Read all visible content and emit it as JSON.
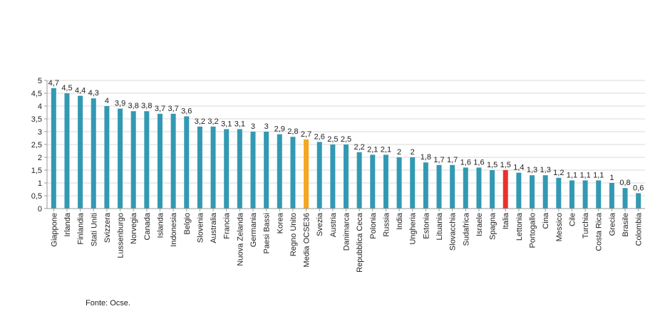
{
  "chart_data": {
    "type": "bar",
    "categories": [
      "Giappone",
      "Irlanda",
      "Finlandia",
      "Stati Uniti",
      "Svizzera",
      "Lussenburgo",
      "Norvegia",
      "Canada",
      "Islanda",
      "Indonesia",
      "Belgio",
      "Slovenia",
      "Australia",
      "Francia",
      "Nuova Zelanda",
      "Germania",
      "Paesi Bassi",
      "Korea",
      "Regno Unito",
      "Media OCSE36",
      "Svezia",
      "Austria",
      "Danimarca",
      "Repubblica Ceca",
      "Polonia",
      "Russia",
      "India",
      "Ungheria",
      "Estonia",
      "Lituania",
      "Slovacchia",
      "Sudafrica",
      "Israele",
      "Spagna",
      "Italia",
      "Lettonia",
      "Portogallo",
      "Cina",
      "Messico",
      "Cile",
      "Turchia",
      "Costa Rica",
      "Grecia",
      "Brasile",
      "Colombia"
    ],
    "values": [
      4.7,
      4.5,
      4.4,
      4.3,
      4,
      3.9,
      3.8,
      3.8,
      3.7,
      3.7,
      3.6,
      3.2,
      3.2,
      3.1,
      3.1,
      3,
      3,
      2.9,
      2.8,
      2.7,
      2.6,
      2.5,
      2.5,
      2.2,
      2.1,
      2.1,
      2,
      2,
      1.8,
      1.7,
      1.7,
      1.6,
      1.6,
      1.5,
      1.5,
      1.4,
      1.3,
      1.3,
      1.2,
      1.1,
      1.1,
      1.1,
      1,
      0.8,
      0.6
    ],
    "data_labels": [
      "4,7",
      "4,5",
      "4,4",
      "4,3",
      "4",
      "3,9",
      "3,8",
      "3,8",
      "3,7",
      "3,7",
      "3,6",
      "3,2",
      "3,2",
      "3,1",
      "3,1",
      "3",
      "3",
      "2,9",
      "2,8",
      "2,7",
      "2,6",
      "2,5",
      "2,5",
      "2,2",
      "2,1",
      "2,1",
      "2",
      "2",
      "1,8",
      "1,7",
      "1,7",
      "1,6",
      "1,6",
      "1,5",
      "1,5",
      "1,4",
      "1,3",
      "1,3",
      "1,2",
      "1,1",
      "1,1",
      "1,1",
      "1",
      "0,8",
      "0,6"
    ],
    "y_ticks": [
      "0",
      "0,5",
      "1",
      "1,5",
      "2",
      "2,5",
      "3",
      "3,5",
      "4",
      "4,5",
      "5"
    ],
    "ylim": [
      0,
      5
    ],
    "grid": true,
    "legend": "none",
    "title": "",
    "xlabel": "",
    "ylabel": "",
    "colors": {
      "default": "#3399b3",
      "highlight_average": "#f5a623",
      "highlight_italy": "#e8322c",
      "grid": "#d9d9d9",
      "axis": "#999999"
    },
    "highlights": {
      "Media OCSE36": "highlight_average",
      "Italia": "highlight_italy"
    }
  },
  "footer": {
    "source": "Fonte: Ocse."
  }
}
